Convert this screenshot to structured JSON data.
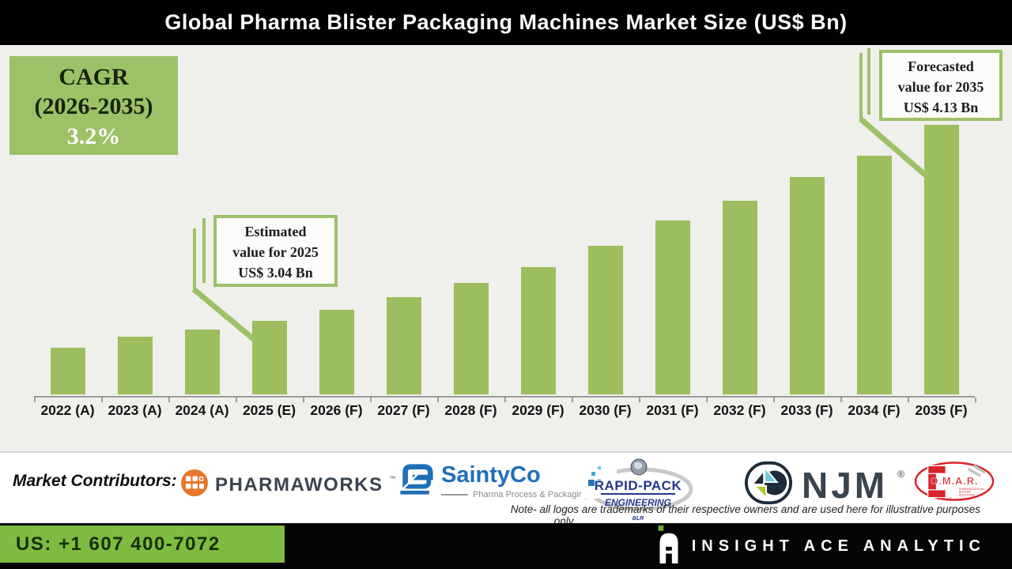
{
  "header": {
    "title": "Global Pharma Blister Packaging Machines Market Size (US$ Bn)"
  },
  "cagr_box": {
    "label": "CAGR",
    "period": "(2026-2035)",
    "value": "3.2%"
  },
  "callout_2025": {
    "line1": "Estimated",
    "line2": "value for 2025",
    "line3": "US$ 3.04 Bn"
  },
  "callout_2035": {
    "line1": "Forecasted",
    "line2": "value for 2035",
    "line3": "US$ 4.13 Bn"
  },
  "chart_data": {
    "type": "bar",
    "title": "Global Pharma Blister Packaging Machines Market Size (US$ Bn)",
    "unit": "US$ Bn",
    "categories": [
      "2022 (A)",
      "2023 (A)",
      "2024 (A)",
      "2025 (E)",
      "2026 (F)",
      "2027 (F)",
      "2028 (F)",
      "2029 (F)",
      "2030 (F)",
      "2031 (F)",
      "2032 (F)",
      "2033 (F)",
      "2034 (F)",
      "2035 (F)"
    ],
    "values": [
      2.89,
      2.95,
      2.99,
      3.04,
      3.1,
      3.17,
      3.25,
      3.34,
      3.46,
      3.6,
      3.71,
      3.84,
      3.96,
      4.13
    ],
    "labeled_points": {
      "2025 (E)": "US$ 3.04 Bn",
      "2035 (F)": "US$ 4.13 Bn"
    },
    "cagr_2026_2035_pct": 3.2,
    "baseline_value": 2.63,
    "ylim": [
      2.63,
      4.25
    ],
    "grid": false,
    "legend": "none",
    "bar_color": "#9CBE5E",
    "plot_background": "#EFEFEC"
  },
  "contributors": {
    "label": "Market Contributors:",
    "pharmaworks": {
      "name": "PHARMAWORKS",
      "tm": "™"
    },
    "saintyco": {
      "name": "SaintyCo",
      "tagline": "Pharma Process & Packaging"
    },
    "rapidpack": {
      "line1": "RAPID-PACK",
      "line2": "ENGINEERING",
      "line3": "BLR"
    },
    "njm": {
      "name": "NJM",
      "reg": "®"
    },
    "omar": {
      "name": "O.M.A.R.",
      "sub1": "PHARMACEUTICAL",
      "sub2": "BLISTER",
      "sub3": "SOLUTIONS",
      "since": "SINCE - 1955"
    }
  },
  "note": {
    "line1": "Note- all logos are trademarks of their respective owners and are used here for illustrative purposes",
    "line2": "only"
  },
  "footer": {
    "phone": "US: +1 607 400-7072",
    "brand": "INSIGHT ACE ANALYTIC"
  },
  "colors": {
    "accent_green": "#9CC167",
    "bar_green": "#9CBE5E",
    "phone_green": "#7EBB41",
    "navy": "#39444E",
    "pharmaworks_orange": "#E8762C",
    "saintyco_blue": "#1F6FB8",
    "rapidpack_blue": "#24368F",
    "omar_red": "#D8232A"
  }
}
